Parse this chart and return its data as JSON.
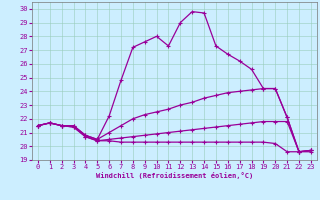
{
  "xlabel": "Windchill (Refroidissement éolien,°C)",
  "xlim": [
    -0.5,
    23.5
  ],
  "ylim": [
    19,
    30.5
  ],
  "yticks": [
    19,
    20,
    21,
    22,
    23,
    24,
    25,
    26,
    27,
    28,
    29,
    30
  ],
  "xticks": [
    0,
    1,
    2,
    3,
    4,
    5,
    6,
    7,
    8,
    9,
    10,
    11,
    12,
    13,
    14,
    15,
    16,
    17,
    18,
    19,
    20,
    21,
    22,
    23
  ],
  "bg_color": "#cceeff",
  "grid_color": "#99ccbb",
  "line_color": "#990099",
  "line_top": [
    21.5,
    21.7,
    21.5,
    21.5,
    20.8,
    20.5,
    22.2,
    24.8,
    27.2,
    27.6,
    28.0,
    27.3,
    29.0,
    29.8,
    29.7,
    27.3,
    26.7,
    26.2,
    25.6,
    24.2,
    24.2,
    22.1,
    19.6,
    19.7
  ],
  "line_mid1": [
    21.5,
    21.7,
    21.5,
    21.5,
    20.8,
    20.5,
    21.0,
    21.5,
    22.0,
    22.3,
    22.5,
    22.7,
    23.0,
    23.2,
    23.5,
    23.7,
    23.9,
    24.0,
    24.1,
    24.2,
    24.2,
    22.1,
    19.6,
    19.7
  ],
  "line_mid2": [
    21.5,
    21.7,
    21.5,
    21.4,
    20.7,
    20.4,
    20.5,
    20.6,
    20.7,
    20.8,
    20.9,
    21.0,
    21.1,
    21.2,
    21.3,
    21.4,
    21.5,
    21.6,
    21.7,
    21.8,
    21.8,
    21.8,
    19.6,
    19.7
  ],
  "line_bot": [
    21.5,
    21.7,
    21.5,
    21.4,
    20.7,
    20.4,
    20.4,
    20.3,
    20.3,
    20.3,
    20.3,
    20.3,
    20.3,
    20.3,
    20.3,
    20.3,
    20.3,
    20.3,
    20.3,
    20.3,
    20.2,
    19.6,
    19.6,
    19.6
  ]
}
